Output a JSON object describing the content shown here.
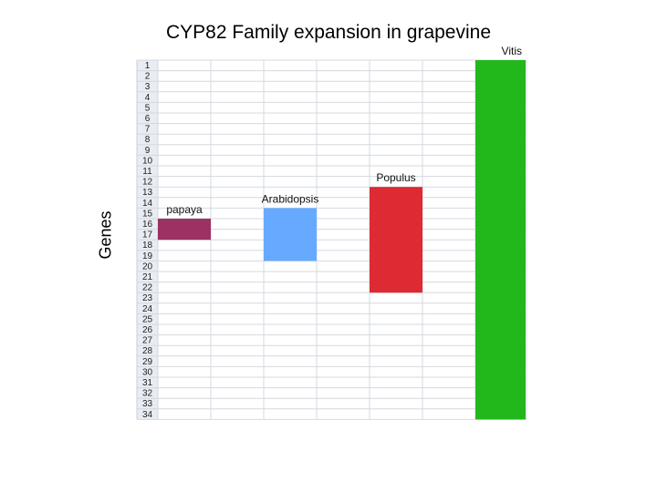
{
  "chart_data": {
    "type": "bar",
    "title": "CYP82 Family expansion in grapevine",
    "ylabel": "Genes",
    "rows": [
      "1",
      "2",
      "3",
      "4",
      "5",
      "6",
      "7",
      "8",
      "9",
      "10",
      "11",
      "12",
      "13",
      "14",
      "15",
      "16",
      "17",
      "18",
      "19",
      "20",
      "21",
      "22",
      "23",
      "24",
      "25",
      "26",
      "27",
      "28",
      "29",
      "30",
      "31",
      "32",
      "33",
      "34"
    ],
    "bars": [
      {
        "name": "papaya",
        "start_row": 16,
        "end_row": 17,
        "color": "#9b3263"
      },
      {
        "name": "Arabidopsis",
        "start_row": 15,
        "end_row": 19,
        "color": "#66aaff"
      },
      {
        "name": "Populus",
        "start_row": 13,
        "end_row": 22,
        "color": "#dd2a33"
      },
      {
        "name": "Vitis",
        "start_row": 1,
        "end_row": 34,
        "color": "#22b81b"
      }
    ],
    "columns": 7,
    "grid": true
  }
}
